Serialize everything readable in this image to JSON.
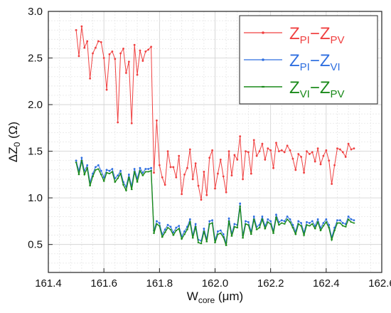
{
  "chart_data": {
    "type": "line",
    "xlabel": {
      "main": "W",
      "sub": "core",
      "unit": " (μm)"
    },
    "ylabel": {
      "main": "ΔZ",
      "sub": "0",
      "unit": " (Ω)"
    },
    "xlim": [
      161.4,
      162.6
    ],
    "ylim": [
      0.2,
      3.0
    ],
    "xticks": [
      "161.4",
      "161.6",
      "161.8",
      "162.0",
      "162.2",
      "162.4",
      "162.6"
    ],
    "yticks": [
      "0.5",
      "1.0",
      "1.5",
      "2.0",
      "2.5",
      "3.0"
    ],
    "xtick_values": [
      161.4,
      161.6,
      161.8,
      162.0,
      162.2,
      162.4,
      162.6
    ],
    "ytick_values": [
      0.5,
      1.0,
      1.5,
      2.0,
      2.5,
      3.0
    ],
    "grid": true,
    "legend_position": "top-right",
    "x": [
      161.5,
      161.51,
      161.52,
      161.53,
      161.54,
      161.55,
      161.56,
      161.57,
      161.58,
      161.59,
      161.6,
      161.61,
      161.62,
      161.63,
      161.64,
      161.65,
      161.66,
      161.67,
      161.68,
      161.69,
      161.7,
      161.71,
      161.72,
      161.73,
      161.74,
      161.75,
      161.76,
      161.77,
      161.78,
      161.79,
      161.8,
      161.81,
      161.82,
      161.83,
      161.84,
      161.85,
      161.86,
      161.87,
      161.88,
      161.89,
      161.9,
      161.91,
      161.92,
      161.93,
      161.94,
      161.95,
      161.96,
      161.97,
      161.98,
      161.99,
      162.0,
      162.01,
      162.02,
      162.03,
      162.04,
      162.05,
      162.06,
      162.07,
      162.08,
      162.09,
      162.1,
      162.11,
      162.12,
      162.13,
      162.14,
      162.15,
      162.16,
      162.17,
      162.18,
      162.19,
      162.2,
      162.21,
      162.22,
      162.23,
      162.24,
      162.25,
      162.26,
      162.27,
      162.28,
      162.29,
      162.3,
      162.31,
      162.32,
      162.33,
      162.34,
      162.35,
      162.36,
      162.37,
      162.38,
      162.39,
      162.4,
      162.41,
      162.42,
      162.43,
      162.44,
      162.45,
      162.46,
      162.47,
      162.48,
      162.49,
      162.5
    ],
    "series": [
      {
        "name": {
          "main": "Z",
          "sub1": "PI",
          "sep": "−Z",
          "sub2": "PV"
        },
        "color": "#f04040",
        "marker": "dot",
        "values": [
          2.8,
          2.52,
          2.84,
          2.61,
          2.68,
          2.28,
          2.55,
          2.61,
          2.68,
          2.67,
          2.5,
          2.16,
          2.54,
          2.57,
          2.49,
          1.81,
          2.55,
          2.6,
          2.34,
          2.46,
          1.8,
          2.64,
          2.32,
          2.58,
          2.47,
          2.57,
          2.59,
          2.62,
          1.27,
          1.83,
          1.35,
          1.22,
          1.14,
          1.5,
          1.33,
          1.33,
          1.22,
          1.45,
          1.04,
          1.25,
          1.32,
          1.52,
          1.2,
          1.37,
          1.13,
          0.98,
          1.28,
          1.03,
          1.43,
          1.51,
          1.1,
          1.26,
          1.41,
          1.23,
          1.06,
          1.5,
          1.24,
          1.46,
          1.41,
          1.66,
          1.2,
          1.5,
          1.49,
          1.26,
          1.62,
          1.45,
          1.5,
          1.58,
          1.41,
          1.53,
          1.51,
          1.32,
          1.59,
          1.5,
          1.51,
          1.49,
          1.56,
          1.51,
          1.42,
          1.3,
          1.47,
          1.44,
          1.27,
          1.5,
          1.47,
          1.49,
          1.39,
          1.53,
          1.36,
          1.45,
          1.51,
          1.4,
          1.15,
          1.35,
          1.53,
          1.52,
          1.49,
          1.44,
          1.58,
          1.52,
          1.53
        ]
      },
      {
        "name": {
          "main": "Z",
          "sub1": "PI",
          "sep": "−Z",
          "sub2": "VI"
        },
        "color": "#2f6fe0",
        "marker": "dot",
        "values": [
          1.4,
          1.29,
          1.43,
          1.29,
          1.35,
          1.17,
          1.26,
          1.33,
          1.35,
          1.29,
          1.22,
          1.3,
          1.29,
          1.31,
          1.21,
          1.24,
          1.29,
          1.17,
          1.12,
          1.25,
          1.13,
          1.31,
          1.21,
          1.32,
          1.27,
          1.31,
          1.31,
          1.32,
          0.65,
          0.75,
          0.73,
          0.61,
          0.66,
          0.71,
          0.69,
          0.63,
          0.68,
          0.7,
          0.59,
          0.64,
          0.69,
          0.77,
          0.6,
          0.72,
          0.55,
          0.54,
          0.67,
          0.56,
          0.75,
          0.76,
          0.55,
          0.64,
          0.65,
          0.61,
          0.52,
          0.78,
          0.62,
          0.72,
          0.71,
          0.94,
          0.6,
          0.75,
          0.74,
          0.64,
          0.8,
          0.69,
          0.71,
          0.8,
          0.7,
          0.77,
          0.75,
          0.65,
          0.82,
          0.74,
          0.76,
          0.75,
          0.8,
          0.77,
          0.71,
          0.64,
          0.75,
          0.73,
          0.63,
          0.74,
          0.73,
          0.75,
          0.7,
          0.77,
          0.68,
          0.73,
          0.77,
          0.71,
          0.58,
          0.68,
          0.76,
          0.76,
          0.73,
          0.72,
          0.8,
          0.77,
          0.76
        ]
      },
      {
        "name": {
          "main": "Z",
          "sub1": "VI",
          "sep": "−Z",
          "sub2": "PV"
        },
        "color": "#1a8a1a",
        "marker": "dash",
        "values": [
          1.38,
          1.25,
          1.4,
          1.25,
          1.32,
          1.13,
          1.23,
          1.3,
          1.31,
          1.25,
          1.18,
          1.27,
          1.26,
          1.28,
          1.17,
          1.21,
          1.26,
          1.14,
          1.08,
          1.22,
          1.09,
          1.28,
          1.17,
          1.29,
          1.24,
          1.28,
          1.28,
          1.29,
          0.62,
          0.72,
          0.7,
          0.58,
          0.63,
          0.68,
          0.66,
          0.6,
          0.65,
          0.67,
          0.56,
          0.61,
          0.66,
          0.74,
          0.57,
          0.69,
          0.52,
          0.51,
          0.64,
          0.53,
          0.72,
          0.73,
          0.52,
          0.61,
          0.62,
          0.58,
          0.49,
          0.75,
          0.59,
          0.69,
          0.68,
          0.91,
          0.57,
          0.72,
          0.71,
          0.61,
          0.77,
          0.66,
          0.68,
          0.77,
          0.67,
          0.74,
          0.72,
          0.62,
          0.79,
          0.71,
          0.73,
          0.72,
          0.77,
          0.74,
          0.68,
          0.61,
          0.72,
          0.7,
          0.6,
          0.71,
          0.7,
          0.72,
          0.67,
          0.74,
          0.65,
          0.7,
          0.74,
          0.68,
          0.55,
          0.65,
          0.73,
          0.73,
          0.7,
          0.69,
          0.77,
          0.74,
          0.73
        ]
      }
    ]
  }
}
